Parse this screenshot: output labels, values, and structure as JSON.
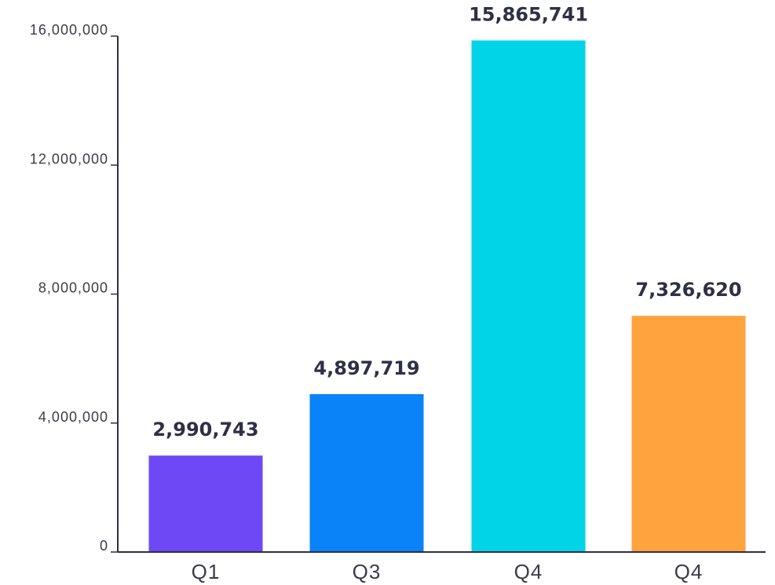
{
  "chart_data": {
    "type": "bar",
    "categories": [
      "Q1",
      "Q3",
      "Q4",
      "Q4"
    ],
    "values": [
      2990743,
      4897719,
      15865741,
      7326620
    ],
    "value_labels": [
      "2,990,743",
      "4,897,719",
      "15,865,741",
      "7,326,620"
    ],
    "bar_colors": [
      "#6e48f5",
      "#0a82f8",
      "#00d4e6",
      "#ffa33f"
    ],
    "ylim": [
      0,
      16000000
    ],
    "yticks": [
      0,
      4000000,
      8000000,
      12000000,
      16000000
    ],
    "ytick_labels": [
      "0",
      "4,000,000",
      "8,000,000",
      "12,000,000",
      "16,000,000"
    ],
    "grid": false,
    "axis_color": "#2f2f45"
  }
}
